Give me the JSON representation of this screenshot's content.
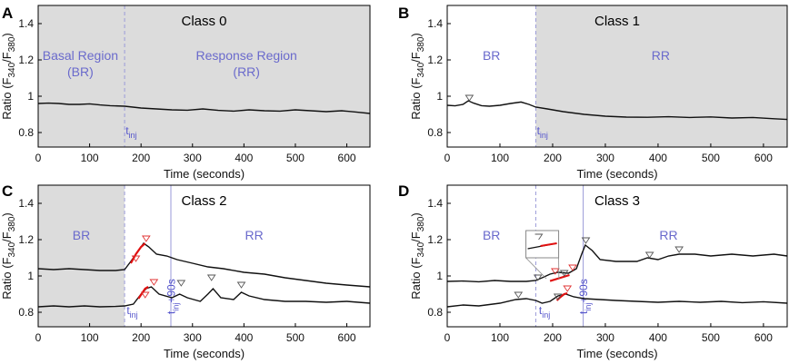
{
  "figure": {
    "x_label": "Time (seconds)",
    "y_label": "Ratio (F340/F380)",
    "x_ticks": [
      0,
      100,
      200,
      300,
      400,
      500,
      600
    ],
    "y_ticks": [
      0.8,
      1,
      1.2,
      1.4
    ],
    "colors": {
      "shade": "#dcdcdc",
      "trace": "#111111",
      "rise": "#e01010",
      "label": "#6a6acc"
    }
  },
  "chart_data": [
    {
      "type": "line",
      "panel": "A",
      "title": "Class 0",
      "xlabel": "Time (seconds)",
      "ylabel": "Ratio (F340/F380)",
      "xlim": [
        0,
        645
      ],
      "ylim": [
        0.72,
        1.5
      ],
      "shade": [
        [
          0,
          645
        ]
      ],
      "vlines": [
        {
          "x": 168,
          "style": "dashed"
        }
      ],
      "region_labels": [
        {
          "lines": [
            "Basal Region",
            "(BR)"
          ],
          "x": 82,
          "y": 1.2
        },
        {
          "lines": [
            "Response Region",
            "(RR)"
          ],
          "x": 405,
          "y": 1.2
        }
      ],
      "markers": [
        {
          "text": "t",
          "sub": "inj",
          "x": 170,
          "y": 0.79,
          "rotate": 0
        }
      ],
      "series": [
        {
          "name": "cell",
          "x": [
            0,
            20,
            40,
            60,
            80,
            100,
            120,
            140,
            168,
            200,
            230,
            260,
            290,
            320,
            350,
            380,
            410,
            440,
            470,
            500,
            530,
            560,
            590,
            620,
            645
          ],
          "y": [
            0.96,
            0.962,
            0.96,
            0.955,
            0.955,
            0.958,
            0.952,
            0.948,
            0.945,
            0.935,
            0.93,
            0.925,
            0.923,
            0.93,
            0.922,
            0.918,
            0.925,
            0.92,
            0.918,
            0.925,
            0.92,
            0.915,
            0.92,
            0.912,
            0.905
          ]
        }
      ],
      "red_segments": [],
      "peaks": []
    },
    {
      "type": "line",
      "panel": "B",
      "title": "Class 1",
      "xlabel": "Time (seconds)",
      "ylabel": "Ratio (F340/F380)",
      "xlim": [
        0,
        645
      ],
      "ylim": [
        0.72,
        1.5
      ],
      "shade": [
        [
          168,
          645
        ]
      ],
      "vlines": [
        {
          "x": 168,
          "style": "dashed"
        }
      ],
      "region_labels": [
        {
          "lines": [
            "BR"
          ],
          "x": 84,
          "y": 1.2
        },
        {
          "lines": [
            "RR"
          ],
          "x": 405,
          "y": 1.2
        }
      ],
      "markers": [
        {
          "text": "t",
          "sub": "inj",
          "x": 170,
          "y": 0.79,
          "rotate": 0
        }
      ],
      "series": [
        {
          "name": "cell",
          "x": [
            0,
            15,
            30,
            40,
            50,
            65,
            80,
            100,
            120,
            140,
            155,
            168,
            190,
            220,
            260,
            300,
            340,
            380,
            420,
            460,
            500,
            540,
            580,
            620,
            645
          ],
          "y": [
            0.95,
            0.947,
            0.955,
            0.975,
            0.962,
            0.948,
            0.945,
            0.95,
            0.96,
            0.968,
            0.955,
            0.94,
            0.93,
            0.915,
            0.9,
            0.89,
            0.885,
            0.884,
            0.887,
            0.883,
            0.886,
            0.88,
            0.883,
            0.876,
            0.872
          ]
        }
      ],
      "red_segments": [],
      "peaks": [
        {
          "x": 42,
          "y": 0.99,
          "color": "gray"
        }
      ]
    },
    {
      "type": "line",
      "panel": "C",
      "title": "Class 2",
      "xlabel": "Time (seconds)",
      "ylabel": "Ratio (F340/F380)",
      "xlim": [
        0,
        645
      ],
      "ylim": [
        0.72,
        1.5
      ],
      "shade": [
        [
          0,
          168
        ]
      ],
      "vlines": [
        {
          "x": 168,
          "style": "dashed"
        },
        {
          "x": 258,
          "style": "solid"
        }
      ],
      "region_labels": [
        {
          "lines": [
            "BR"
          ],
          "x": 84,
          "y": 1.2
        },
        {
          "lines": [
            "RR"
          ],
          "x": 420,
          "y": 1.2
        }
      ],
      "markers": [
        {
          "text": "t",
          "sub": "inj",
          "x": 172,
          "y": 0.79,
          "rotate": 0
        },
        {
          "text": "t",
          "sub": "inj",
          "suffix": "+90s",
          "x": 266,
          "y": 0.79,
          "rotate": -90
        }
      ],
      "series": [
        {
          "name": "upper",
          "x": [
            0,
            30,
            60,
            90,
            120,
            150,
            168,
            180,
            195,
            205,
            215,
            230,
            250,
            270,
            300,
            330,
            360,
            400,
            440,
            480,
            520,
            560,
            600,
            645
          ],
          "y": [
            1.04,
            1.035,
            1.04,
            1.035,
            1.03,
            1.03,
            1.035,
            1.08,
            1.14,
            1.18,
            1.16,
            1.12,
            1.11,
            1.09,
            1.07,
            1.05,
            1.04,
            1.02,
            1.01,
            0.99,
            0.975,
            0.96,
            0.95,
            0.94
          ]
        },
        {
          "name": "lower",
          "x": [
            0,
            30,
            60,
            90,
            120,
            150,
            168,
            185,
            200,
            210,
            220,
            235,
            260,
            275,
            290,
            315,
            330,
            340,
            355,
            380,
            395,
            410,
            440,
            480,
            520,
            560,
            600,
            645
          ],
          "y": [
            0.83,
            0.835,
            0.83,
            0.835,
            0.83,
            0.832,
            0.835,
            0.845,
            0.9,
            0.93,
            0.94,
            0.9,
            0.88,
            0.9,
            0.88,
            0.86,
            0.9,
            0.93,
            0.88,
            0.87,
            0.91,
            0.89,
            0.87,
            0.86,
            0.86,
            0.855,
            0.86,
            0.85
          ]
        }
      ],
      "red_segments": [
        {
          "x": [
            180,
            190,
            200,
            208
          ],
          "y": [
            1.07,
            1.12,
            1.16,
            1.18
          ]
        },
        {
          "x": [
            195,
            202,
            208,
            214
          ],
          "y": [
            0.875,
            0.905,
            0.93,
            0.94
          ]
        }
      ],
      "peaks": [
        {
          "x": 210,
          "y": 1.205,
          "color": "red"
        },
        {
          "x": 190,
          "y": 1.095,
          "color": "red"
        },
        {
          "x": 225,
          "y": 0.965,
          "color": "red"
        },
        {
          "x": 208,
          "y": 0.895,
          "color": "red"
        },
        {
          "x": 278,
          "y": 0.96,
          "color": "gray"
        },
        {
          "x": 337,
          "y": 0.99,
          "color": "gray"
        },
        {
          "x": 395,
          "y": 0.95,
          "color": "gray"
        }
      ]
    },
    {
      "type": "line",
      "panel": "D",
      "title": "Class 3",
      "xlabel": "Time (seconds)",
      "ylabel": "Ratio (F340/F380)",
      "xlim": [
        0,
        645
      ],
      "ylim": [
        0.72,
        1.5
      ],
      "shade": [],
      "vlines": [
        {
          "x": 168,
          "style": "dashed"
        },
        {
          "x": 258,
          "style": "solid"
        }
      ],
      "region_labels": [
        {
          "lines": [
            "BR"
          ],
          "x": 84,
          "y": 1.2
        },
        {
          "lines": [
            "RR"
          ],
          "x": 420,
          "y": 1.2
        }
      ],
      "markers": [
        {
          "text": "t",
          "sub": "inj",
          "x": 174,
          "y": 0.79,
          "rotate": 0
        },
        {
          "text": "t",
          "sub": "inj",
          "suffix": "+90s",
          "x": 266,
          "y": 0.79,
          "rotate": -90
        }
      ],
      "series": [
        {
          "name": "upper",
          "x": [
            0,
            30,
            60,
            90,
            120,
            150,
            168,
            180,
            195,
            210,
            230,
            245,
            255,
            262,
            275,
            290,
            320,
            360,
            380,
            400,
            420,
            440,
            470,
            500,
            540,
            580,
            620,
            645
          ],
          "y": [
            0.97,
            0.972,
            0.968,
            0.975,
            0.97,
            0.97,
            0.975,
            0.99,
            1.01,
            1.02,
            1.015,
            1.04,
            1.12,
            1.17,
            1.14,
            1.09,
            1.08,
            1.08,
            1.1,
            1.09,
            1.11,
            1.12,
            1.12,
            1.11,
            1.12,
            1.11,
            1.12,
            1.11
          ]
        },
        {
          "name": "lower",
          "x": [
            0,
            30,
            60,
            100,
            130,
            150,
            168,
            180,
            195,
            210,
            225,
            240,
            260,
            290,
            320,
            360,
            400,
            440,
            480,
            520,
            560,
            600,
            645
          ],
          "y": [
            0.83,
            0.84,
            0.835,
            0.85,
            0.87,
            0.875,
            0.865,
            0.85,
            0.86,
            0.89,
            0.9,
            0.885,
            0.875,
            0.87,
            0.865,
            0.86,
            0.855,
            0.86,
            0.855,
            0.86,
            0.853,
            0.858,
            0.85
          ]
        }
      ],
      "red_segments": [
        {
          "x": [
            195,
            215,
            232
          ],
          "y": [
            0.972,
            0.99,
            1.005
          ]
        },
        {
          "x": [
            208,
            214,
            222,
            228
          ],
          "y": [
            0.865,
            0.882,
            0.9,
            0.905
          ]
        }
      ],
      "peaks": [
        {
          "x": 135,
          "y": 0.895,
          "color": "gray"
        },
        {
          "x": 172,
          "y": 0.99,
          "color": "gray"
        },
        {
          "x": 205,
          "y": 1.025,
          "color": "red"
        },
        {
          "x": 222,
          "y": 1.015,
          "color": "gray"
        },
        {
          "x": 238,
          "y": 1.045,
          "color": "red"
        },
        {
          "x": 228,
          "y": 0.93,
          "color": "red"
        },
        {
          "x": 210,
          "y": 0.885,
          "color": "gray"
        },
        {
          "x": 263,
          "y": 1.195,
          "color": "gray"
        },
        {
          "x": 384,
          "y": 1.115,
          "color": "gray"
        },
        {
          "x": 440,
          "y": 1.145,
          "color": "gray"
        }
      ],
      "inset": {
        "x": 170,
        "y": 1.2
      }
    }
  ]
}
